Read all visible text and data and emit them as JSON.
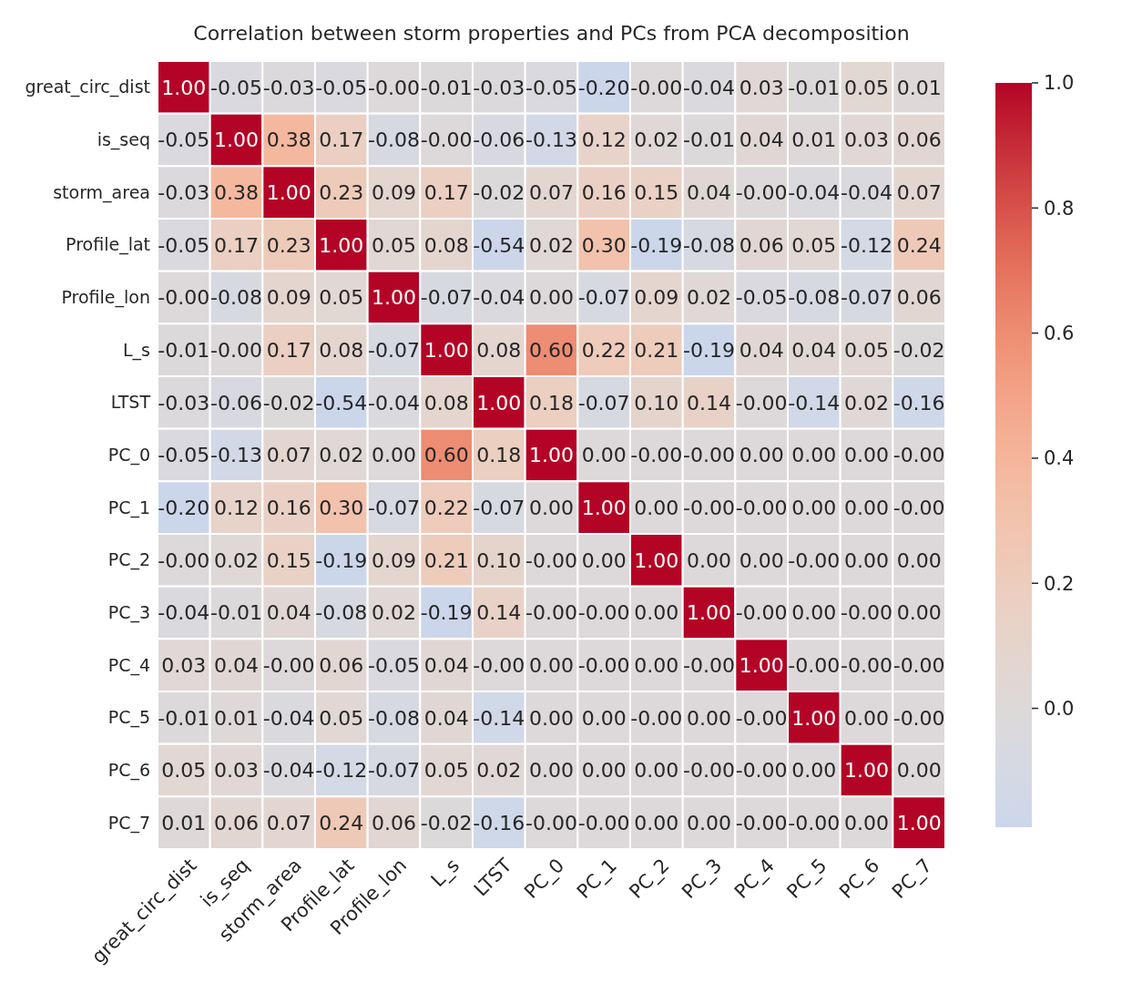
{
  "chart_data": {
    "type": "heatmap",
    "title": "Correlation between storm properties and PCs from PCA decomposition",
    "categories": [
      "great_circ_dist",
      "is_seq",
      "storm_area",
      "Profile_lat",
      "Profile_lon",
      "L_s",
      "LTST",
      "PC_0",
      "PC_1",
      "PC_2",
      "PC_3",
      "PC_4",
      "PC_5",
      "PC_6",
      "PC_7"
    ],
    "y_categories": [
      "great_circ_dist",
      "is_seq",
      "storm_area",
      "Profile_lat",
      "Profile_lon",
      "L_s",
      "LTST",
      "PC_0",
      "PC_1",
      "PC_2",
      "PC_3",
      "PC_4",
      "PC_5",
      "PC_6",
      "PC_7"
    ],
    "cells": [
      [
        1.0,
        -0.05,
        -0.03,
        -0.05,
        0,
        -0.01,
        -0.03,
        -0.05,
        -0.2,
        0,
        -0.04,
        0.03,
        -0.01,
        0.05,
        0.01
      ],
      [
        -0.05,
        1.0,
        0.38,
        0.17,
        -0.08,
        0,
        -0.06,
        -0.13,
        0.12,
        0.02,
        -0.01,
        0.04,
        0.01,
        0.03,
        0.06
      ],
      [
        -0.03,
        0.38,
        1.0,
        0.23,
        0.09,
        0.17,
        -0.02,
        0.07,
        0.16,
        0.15,
        0.04,
        0,
        -0.04,
        -0.04,
        0.07
      ],
      [
        -0.05,
        0.17,
        0.23,
        1.0,
        0.05,
        0.08,
        -0.54,
        0.02,
        0.3,
        -0.19,
        -0.08,
        0.06,
        0.05,
        -0.12,
        0.24
      ],
      [
        0,
        -0.08,
        0.09,
        0.05,
        1.0,
        -0.07,
        -0.04,
        0,
        -0.07,
        0.09,
        0.02,
        -0.05,
        -0.08,
        -0.07,
        0.06
      ],
      [
        -0.01,
        0,
        0.17,
        0.08,
        -0.07,
        1.0,
        0.08,
        0.6,
        0.22,
        0.21,
        -0.19,
        0.04,
        0.04,
        0.05,
        -0.02
      ],
      [
        -0.03,
        -0.06,
        -0.02,
        -0.54,
        -0.04,
        0.08,
        1.0,
        0.18,
        -0.07,
        0.1,
        0.14,
        0,
        -0.14,
        0.02,
        -0.16
      ],
      [
        -0.05,
        -0.13,
        0.07,
        0.02,
        0,
        0.6,
        0.18,
        1.0,
        0,
        0,
        0,
        0,
        0,
        0,
        0
      ],
      [
        -0.2,
        0.12,
        0.16,
        0.3,
        -0.07,
        0.22,
        -0.07,
        0,
        1.0,
        0,
        0,
        0,
        0,
        0,
        0
      ],
      [
        0,
        0.02,
        0.15,
        -0.19,
        0.09,
        0.21,
        0.1,
        0,
        0,
        1.0,
        0,
        0,
        0,
        0,
        0
      ],
      [
        -0.04,
        -0.01,
        0.04,
        -0.08,
        0.02,
        -0.19,
        0.14,
        0,
        0,
        0,
        1.0,
        0,
        0,
        0,
        0
      ],
      [
        0.03,
        0.04,
        0,
        0.06,
        -0.05,
        0.04,
        0,
        0,
        0,
        0,
        0,
        1.0,
        0,
        0,
        0
      ],
      [
        -0.01,
        0.01,
        -0.04,
        0.05,
        -0.08,
        0.04,
        -0.14,
        0,
        0,
        0,
        0,
        0,
        1.0,
        0,
        0
      ],
      [
        0.05,
        0.03,
        -0.04,
        -0.12,
        -0.07,
        0.05,
        0.02,
        0,
        0,
        0,
        0,
        0,
        0,
        1.0,
        0
      ],
      [
        0.01,
        0.06,
        0.07,
        0.24,
        0.06,
        -0.02,
        -0.16,
        0,
        0,
        0,
        0,
        0,
        0,
        0,
        1.0
      ]
    ],
    "cell_labels": [
      [
        "1.00",
        "-0.05",
        "-0.03",
        "-0.05",
        "-0.00",
        "-0.01",
        "-0.03",
        "-0.05",
        "-0.20",
        "-0.00",
        "-0.04",
        "0.03",
        "-0.01",
        "0.05",
        "0.01"
      ],
      [
        "-0.05",
        "1.00",
        "0.38",
        "0.17",
        "-0.08",
        "-0.00",
        "-0.06",
        "-0.13",
        "0.12",
        "0.02",
        "-0.01",
        "0.04",
        "0.01",
        "0.03",
        "0.06"
      ],
      [
        "-0.03",
        "0.38",
        "1.00",
        "0.23",
        "0.09",
        "0.17",
        "-0.02",
        "0.07",
        "0.16",
        "0.15",
        "0.04",
        "-0.00",
        "-0.04",
        "-0.04",
        "0.07"
      ],
      [
        "-0.05",
        "0.17",
        "0.23",
        "1.00",
        "0.05",
        "0.08",
        "-0.54",
        "0.02",
        "0.30",
        "-0.19",
        "-0.08",
        "0.06",
        "0.05",
        "-0.12",
        "0.24"
      ],
      [
        "-0.00",
        "-0.08",
        "0.09",
        "0.05",
        "1.00",
        "-0.07",
        "-0.04",
        "0.00",
        "-0.07",
        "0.09",
        "0.02",
        "-0.05",
        "-0.08",
        "-0.07",
        "0.06"
      ],
      [
        "-0.01",
        "-0.00",
        "0.17",
        "0.08",
        "-0.07",
        "1.00",
        "0.08",
        "0.60",
        "0.22",
        "0.21",
        "-0.19",
        "0.04",
        "0.04",
        "0.05",
        "-0.02"
      ],
      [
        "-0.03",
        "-0.06",
        "-0.02",
        "-0.54",
        "-0.04",
        "0.08",
        "1.00",
        "0.18",
        "-0.07",
        "0.10",
        "0.14",
        "-0.00",
        "-0.14",
        "0.02",
        "-0.16"
      ],
      [
        "-0.05",
        "-0.13",
        "0.07",
        "0.02",
        "0.00",
        "0.60",
        "0.18",
        "1.00",
        "0.00",
        "-0.00",
        "-0.00",
        "0.00",
        "0.00",
        "0.00",
        "-0.00"
      ],
      [
        "-0.20",
        "0.12",
        "0.16",
        "0.30",
        "-0.07",
        "0.22",
        "-0.07",
        "0.00",
        "1.00",
        "0.00",
        "-0.00",
        "-0.00",
        "0.00",
        "0.00",
        "-0.00"
      ],
      [
        "-0.00",
        "0.02",
        "0.15",
        "-0.19",
        "0.09",
        "0.21",
        "0.10",
        "-0.00",
        "0.00",
        "1.00",
        "0.00",
        "0.00",
        "-0.00",
        "0.00",
        "0.00"
      ],
      [
        "-0.04",
        "-0.01",
        "0.04",
        "-0.08",
        "0.02",
        "-0.19",
        "0.14",
        "-0.00",
        "-0.00",
        "0.00",
        "1.00",
        "-0.00",
        "0.00",
        "-0.00",
        "0.00"
      ],
      [
        "0.03",
        "0.04",
        "-0.00",
        "0.06",
        "-0.05",
        "0.04",
        "-0.00",
        "0.00",
        "-0.00",
        "0.00",
        "-0.00",
        "1.00",
        "-0.00",
        "-0.00",
        "-0.00"
      ],
      [
        "-0.01",
        "0.01",
        "-0.04",
        "0.05",
        "-0.08",
        "0.04",
        "-0.14",
        "0.00",
        "0.00",
        "-0.00",
        "0.00",
        "-0.00",
        "1.00",
        "0.00",
        "-0.00"
      ],
      [
        "0.05",
        "0.03",
        "-0.04",
        "-0.12",
        "-0.07",
        "0.05",
        "0.02",
        "0.00",
        "0.00",
        "0.00",
        "-0.00",
        "-0.00",
        "0.00",
        "1.00",
        "0.00"
      ],
      [
        "0.01",
        "0.06",
        "0.07",
        "0.24",
        "0.06",
        "-0.02",
        "-0.16",
        "-0.00",
        "-0.00",
        "0.00",
        "0.00",
        "-0.00",
        "-0.00",
        "0.00",
        "1.00"
      ]
    ],
    "clim": [
      -0.19,
      1.0
    ],
    "cticks": [
      {
        "value": 0,
        "label": "0.0"
      },
      {
        "value": 0.2,
        "label": "0.2"
      },
      {
        "value": 0.4,
        "label": "0.4"
      },
      {
        "value": 0.6,
        "label": "0.6"
      },
      {
        "value": 0.8,
        "label": "0.8"
      },
      {
        "value": 1.0,
        "label": "1.0"
      }
    ]
  }
}
